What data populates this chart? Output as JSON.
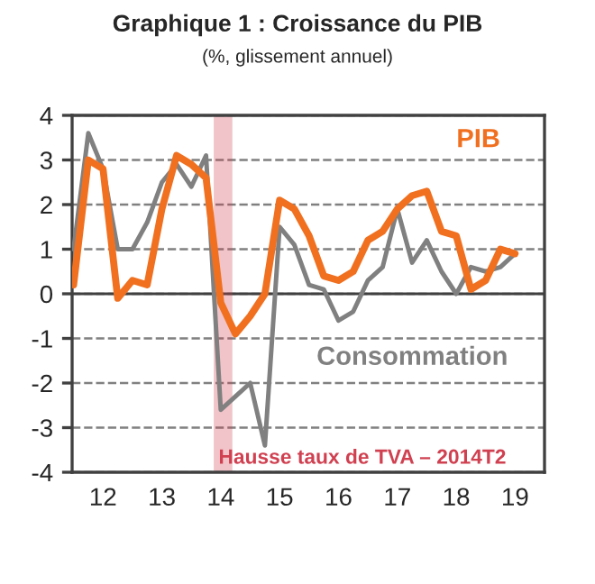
{
  "chart_data": {
    "type": "line",
    "title": "Graphique 1 : Croissance du PIB",
    "subtitle": "(%, glissement annuel)",
    "categories": [
      null,
      null,
      "12",
      null,
      null,
      null,
      "13",
      null,
      null,
      null,
      "14",
      null,
      null,
      null,
      "15",
      null,
      null,
      null,
      "16",
      null,
      null,
      null,
      "17",
      null,
      null,
      null,
      "18",
      null,
      null,
      null,
      "19"
    ],
    "series": [
      {
        "name": "PIB",
        "color": "#f07020",
        "values": [
          0.2,
          3.0,
          2.8,
          -0.1,
          0.3,
          0.2,
          1.9,
          3.1,
          2.9,
          2.6,
          -0.2,
          -0.9,
          -0.5,
          0.0,
          2.1,
          1.9,
          1.3,
          0.4,
          0.3,
          0.5,
          1.2,
          1.4,
          1.9,
          2.2,
          2.3,
          1.4,
          1.3,
          0.1,
          0.3,
          1.0,
          0.9
        ]
      },
      {
        "name": "Consommation",
        "color": "#808080",
        "values": [
          1.0,
          3.6,
          2.8,
          1.0,
          1.0,
          1.6,
          2.5,
          2.9,
          2.4,
          3.1,
          -2.6,
          -2.3,
          -2.0,
          -3.4,
          1.5,
          1.1,
          0.2,
          0.1,
          -0.6,
          -0.4,
          0.3,
          0.6,
          1.9,
          0.7,
          1.2,
          0.5,
          0.0,
          0.6,
          0.5,
          0.6,
          0.9
        ]
      }
    ],
    "ylim": [
      -4,
      4
    ],
    "yticks": [
      -4,
      -3,
      -2,
      -1,
      0,
      1,
      2,
      3,
      4
    ],
    "ref_lines": [
      {
        "axis": "y",
        "value": 0,
        "color": "#404040",
        "line_style": "solid"
      }
    ],
    "annotations": [
      "Hausse taux de TVA – 2014T2"
    ],
    "grid": "y",
    "legend": false,
    "marker": "none",
    "line_style": "solid"
  }
}
